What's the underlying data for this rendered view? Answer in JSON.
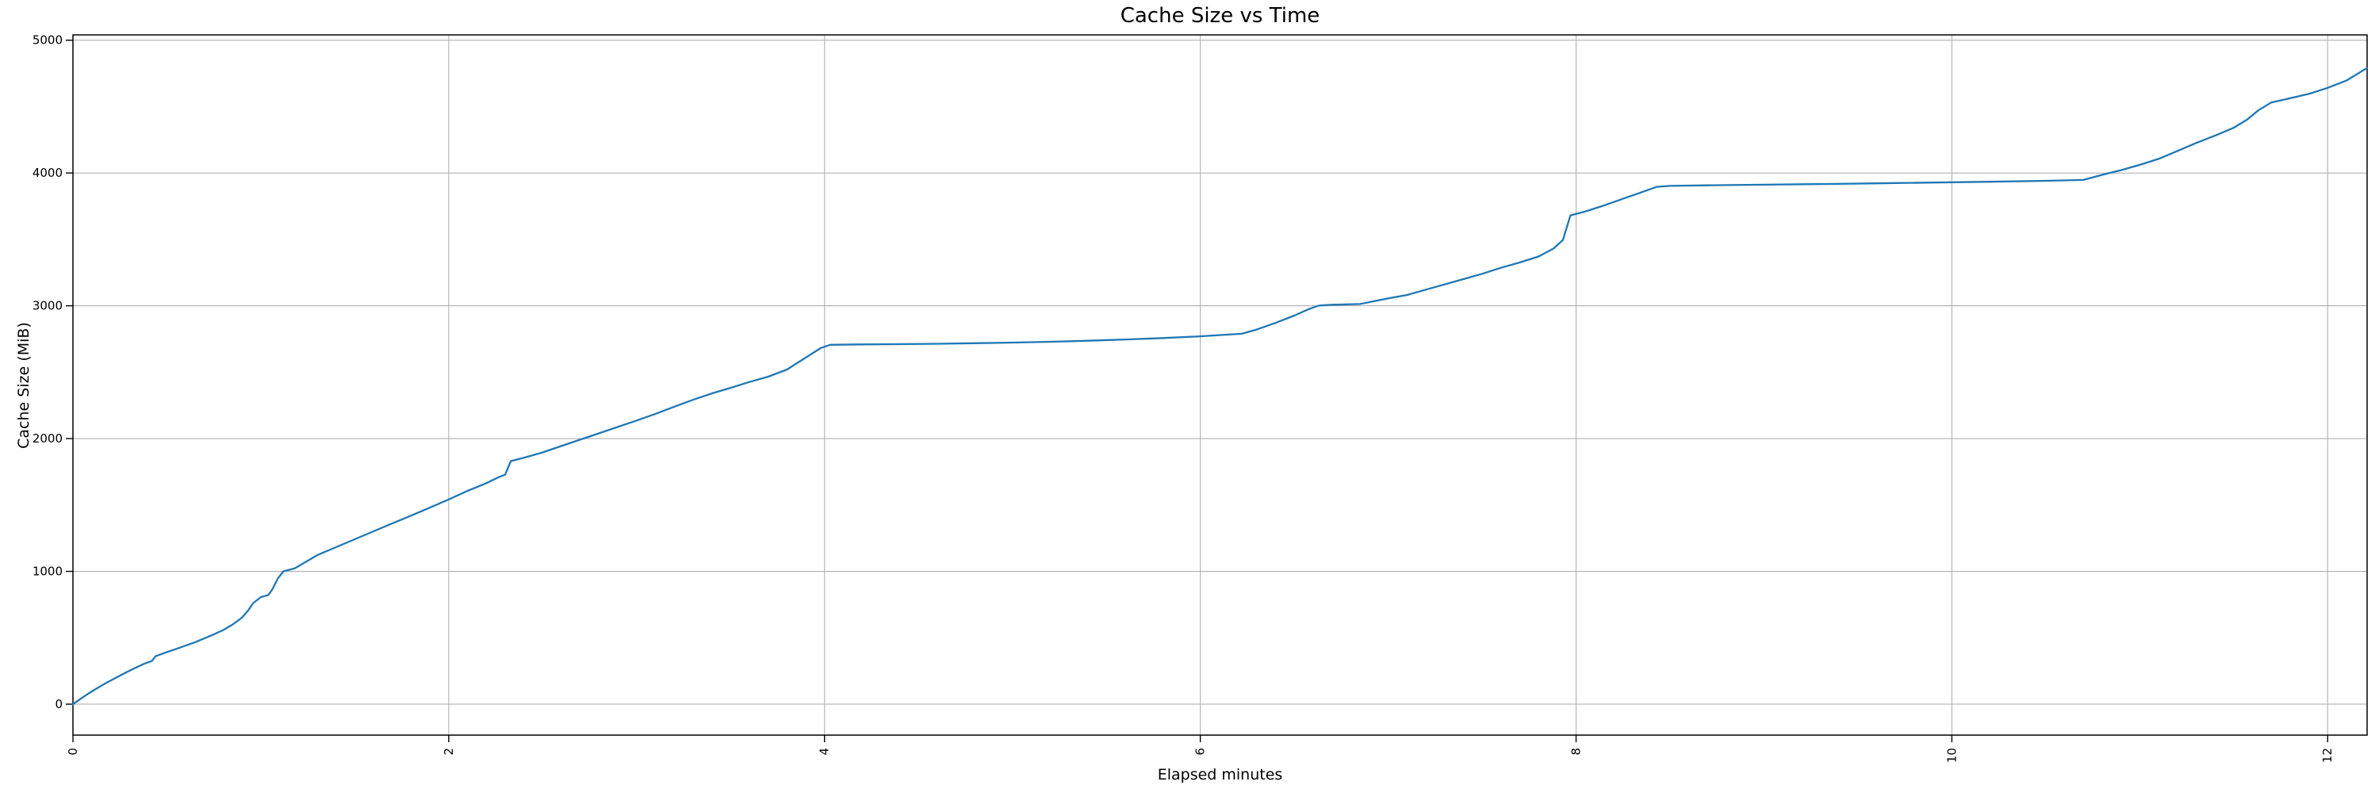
{
  "figure": {
    "title": "Cache Size vs Time",
    "xlabel": "Elapsed minutes",
    "ylabel": "Cache Size (MiB)"
  },
  "chart_data": {
    "type": "line",
    "title": "Cache Size vs Time",
    "xlabel": "Elapsed minutes",
    "ylabel": "Cache Size (MiB)",
    "xlim": [
      0,
      12.21
    ],
    "ylim": [
      -233,
      5040
    ],
    "x_ticks": [
      0,
      2,
      4,
      6,
      8,
      10,
      12
    ],
    "y_ticks": [
      0,
      1000,
      2000,
      3000,
      4000,
      5000
    ],
    "x_tick_rotation": 90,
    "grid": true,
    "legend_position": "none",
    "colors": {
      "line": "#1f77b4",
      "grid": "#b0b0b0",
      "spine": "#000000",
      "text": "#000000",
      "background": "#ffffff"
    },
    "series": [
      {
        "name": "Cache Size",
        "points": [
          [
            0,
            0
          ],
          [
            0.04,
            40
          ],
          [
            0.08,
            78
          ],
          [
            0.13,
            122
          ],
          [
            0.18,
            162
          ],
          [
            0.23,
            200
          ],
          [
            0.28,
            237
          ],
          [
            0.33,
            272
          ],
          [
            0.38,
            305
          ],
          [
            0.42,
            325
          ],
          [
            0.44,
            362
          ],
          [
            0.5,
            392
          ],
          [
            0.55,
            416
          ],
          [
            0.6,
            441
          ],
          [
            0.65,
            466
          ],
          [
            0.7,
            496
          ],
          [
            0.75,
            526
          ],
          [
            0.8,
            558
          ],
          [
            0.85,
            600
          ],
          [
            0.9,
            652
          ],
          [
            0.93,
            702
          ],
          [
            0.96,
            762
          ],
          [
            1.0,
            806
          ],
          [
            1.04,
            822
          ],
          [
            1.06,
            862
          ],
          [
            1.09,
            946
          ],
          [
            1.12,
            1000
          ],
          [
            1.18,
            1022
          ],
          [
            1.3,
            1122
          ],
          [
            1.4,
            1182
          ],
          [
            1.5,
            1242
          ],
          [
            1.6,
            1302
          ],
          [
            1.7,
            1362
          ],
          [
            1.8,
            1420
          ],
          [
            1.9,
            1480
          ],
          [
            2.0,
            1542
          ],
          [
            2.1,
            1606
          ],
          [
            2.2,
            1664
          ],
          [
            2.27,
            1712
          ],
          [
            2.3,
            1728
          ],
          [
            2.33,
            1830
          ],
          [
            2.4,
            1856
          ],
          [
            2.5,
            1896
          ],
          [
            2.6,
            1944
          ],
          [
            2.7,
            1992
          ],
          [
            2.8,
            2040
          ],
          [
            2.9,
            2088
          ],
          [
            3.0,
            2136
          ],
          [
            3.1,
            2186
          ],
          [
            3.2,
            2240
          ],
          [
            3.3,
            2292
          ],
          [
            3.4,
            2340
          ],
          [
            3.5,
            2382
          ],
          [
            3.6,
            2426
          ],
          [
            3.7,
            2466
          ],
          [
            3.8,
            2520
          ],
          [
            3.9,
            2610
          ],
          [
            3.98,
            2682
          ],
          [
            4.03,
            2706
          ],
          [
            4.2,
            2709
          ],
          [
            4.4,
            2711
          ],
          [
            4.6,
            2714
          ],
          [
            4.8,
            2718
          ],
          [
            5.0,
            2723
          ],
          [
            5.2,
            2729
          ],
          [
            5.4,
            2737
          ],
          [
            5.6,
            2746
          ],
          [
            5.8,
            2757
          ],
          [
            6.0,
            2770
          ],
          [
            6.1,
            2779
          ],
          [
            6.22,
            2789
          ],
          [
            6.3,
            2821
          ],
          [
            6.4,
            2871
          ],
          [
            6.5,
            2926
          ],
          [
            6.58,
            2976
          ],
          [
            6.63,
            3001
          ],
          [
            6.7,
            3008
          ],
          [
            6.85,
            3013
          ],
          [
            7.0,
            3056
          ],
          [
            7.1,
            3081
          ],
          [
            7.2,
            3121
          ],
          [
            7.3,
            3161
          ],
          [
            7.4,
            3201
          ],
          [
            7.5,
            3241
          ],
          [
            7.6,
            3286
          ],
          [
            7.7,
            3326
          ],
          [
            7.8,
            3371
          ],
          [
            7.88,
            3431
          ],
          [
            7.93,
            3496
          ],
          [
            7.97,
            3681
          ],
          [
            8.05,
            3711
          ],
          [
            8.15,
            3756
          ],
          [
            8.25,
            3806
          ],
          [
            8.35,
            3856
          ],
          [
            8.43,
            3896
          ],
          [
            8.5,
            3903
          ],
          [
            8.7,
            3907
          ],
          [
            9.0,
            3912
          ],
          [
            9.3,
            3917
          ],
          [
            9.6,
            3922
          ],
          [
            9.9,
            3928
          ],
          [
            10.2,
            3934
          ],
          [
            10.5,
            3941
          ],
          [
            10.7,
            3948
          ],
          [
            10.8,
            3986
          ],
          [
            10.9,
            4021
          ],
          [
            11.0,
            4061
          ],
          [
            11.1,
            4106
          ],
          [
            11.2,
            4166
          ],
          [
            11.3,
            4226
          ],
          [
            11.4,
            4281
          ],
          [
            11.5,
            4341
          ],
          [
            11.57,
            4401
          ],
          [
            11.63,
            4471
          ],
          [
            11.7,
            4531
          ],
          [
            11.78,
            4556
          ],
          [
            11.9,
            4596
          ],
          [
            12.0,
            4641
          ],
          [
            12.1,
            4696
          ],
          [
            12.21,
            4791
          ]
        ]
      }
    ]
  }
}
